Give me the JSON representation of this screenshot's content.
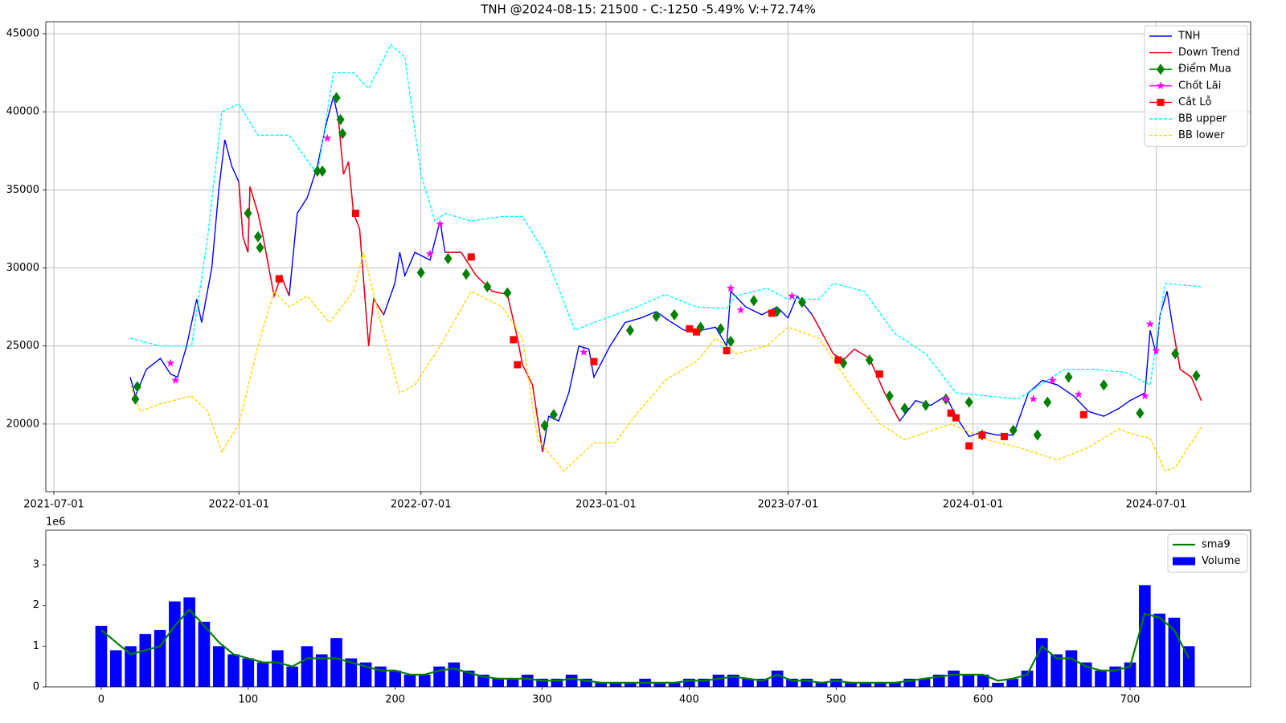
{
  "chart_data": [
    {
      "type": "line",
      "title": "TNH @2024-08-15: 21500 - C:-1250 -5.49% V:+72.74%",
      "xlim": [
        "2021-06-23",
        "2024-10-03"
      ],
      "ylim": [
        15670,
        45770
      ],
      "xticks": [
        "2021-07-01",
        "2022-01-01",
        "2022-07-01",
        "2023-01-01",
        "2023-07-01",
        "2024-01-01",
        "2024-07-01"
      ],
      "yticks": [
        20000,
        25000,
        30000,
        35000,
        40000,
        45000
      ],
      "grid": true,
      "legend": "upper right",
      "x": [
        "2021-09-15",
        "2021-09-20",
        "2021-10-01",
        "2021-10-15",
        "2021-10-25",
        "2021-11-01",
        "2021-11-10",
        "2021-11-20",
        "2021-11-25",
        "2021-12-05",
        "2021-12-12",
        "2021-12-18",
        "2021-12-25",
        "2022-01-01",
        "2022-01-05",
        "2022-01-10",
        "2022-01-12",
        "2022-01-20",
        "2022-01-25",
        "2022-02-05",
        "2022-02-12",
        "2022-02-20",
        "2022-02-28",
        "2022-03-10",
        "2022-03-20",
        "2022-03-28",
        "2022-04-05",
        "2022-04-10",
        "2022-04-15",
        "2022-04-20",
        "2022-04-25",
        "2022-05-01",
        "2022-05-10",
        "2022-05-15",
        "2022-05-25",
        "2022-06-05",
        "2022-06-10",
        "2022-06-15",
        "2022-06-25",
        "2022-07-10",
        "2022-07-20",
        "2022-07-25",
        "2022-08-10",
        "2022-08-25",
        "2022-09-10",
        "2022-09-25",
        "2022-10-05",
        "2022-10-10",
        "2022-10-20",
        "2022-10-30",
        "2022-11-05",
        "2022-11-15",
        "2022-11-25",
        "2022-12-05",
        "2022-12-15",
        "2022-12-20",
        "2023-01-05",
        "2023-01-20",
        "2023-02-05",
        "2023-02-20",
        "2023-03-05",
        "2023-03-20",
        "2023-04-05",
        "2023-04-20",
        "2023-05-01",
        "2023-05-05",
        "2023-05-20",
        "2023-06-05",
        "2023-06-20",
        "2023-07-01",
        "2023-07-10",
        "2023-07-25",
        "2023-08-15",
        "2023-08-25",
        "2023-09-05",
        "2023-09-20",
        "2023-10-05",
        "2023-10-20",
        "2023-11-05",
        "2023-11-20",
        "2023-12-05",
        "2023-12-15",
        "2023-12-28",
        "2024-01-10",
        "2024-01-25",
        "2024-02-10",
        "2024-02-25",
        "2024-03-10",
        "2024-03-25",
        "2024-04-10",
        "2024-04-25",
        "2024-05-10",
        "2024-05-25",
        "2024-06-05",
        "2024-06-20",
        "2024-06-25",
        "2024-07-01",
        "2024-07-05",
        "2024-07-12",
        "2024-07-18",
        "2024-07-25",
        "2024-08-05",
        "2024-08-15"
      ],
      "series": [
        {
          "name": "TNH",
          "color": "#0000ff",
          "style": "solid",
          "values": [
            23000,
            21800,
            23500,
            24200,
            23200,
            23000,
            25000,
            28000,
            26500,
            30000,
            35000,
            38200,
            36500,
            35500,
            32000,
            31000,
            35200,
            33500,
            32000,
            28200,
            29500,
            28200,
            33500,
            34500,
            36500,
            39000,
            41000,
            39500,
            36000,
            36800,
            33500,
            32500,
            25000,
            28000,
            27000,
            29000,
            31000,
            29500,
            31000,
            30500,
            33000,
            31000,
            31000,
            29500,
            28500,
            28300,
            25500,
            23800,
            22500,
            18200,
            20500,
            20200,
            22000,
            25000,
            24800,
            23000,
            25000,
            26500,
            26800,
            27200,
            26600,
            26000,
            26000,
            26200,
            25000,
            28500,
            27500,
            27000,
            27500,
            26800,
            28200,
            27000,
            24500,
            24100,
            24800,
            24200,
            22000,
            20200,
            21500,
            21200,
            21800,
            20500,
            19200,
            19500,
            19300,
            19300,
            22000,
            22800,
            22500,
            21800,
            20800,
            20500,
            21000,
            21500,
            22000,
            26000,
            24500,
            27000,
            28500,
            26000,
            23500,
            23000,
            21500
          ]
        },
        {
          "name": "Down Trend",
          "color": "#ff0000",
          "style": "solid",
          "values": [
            null,
            null,
            null,
            null,
            null,
            null,
            null,
            null,
            null,
            null,
            null,
            null,
            null,
            35500,
            32000,
            31000,
            35200,
            33500,
            32000,
            28200,
            29500,
            28200,
            null,
            null,
            null,
            null,
            null,
            39500,
            36000,
            36800,
            33500,
            32500,
            25000,
            28000,
            27000,
            null,
            null,
            null,
            null,
            null,
            null,
            31000,
            31000,
            29500,
            28500,
            28300,
            25500,
            23800,
            22500,
            18200,
            null,
            null,
            null,
            null,
            null,
            null,
            null,
            null,
            null,
            null,
            null,
            null,
            null,
            null,
            null,
            null,
            null,
            null,
            null,
            null,
            null,
            27000,
            24500,
            24100,
            24800,
            24200,
            22000,
            20200,
            null,
            null,
            null,
            null,
            null,
            null,
            null,
            null,
            null,
            null,
            null,
            null,
            null,
            null,
            null,
            null,
            null,
            null,
            null,
            null,
            null,
            26000,
            23500,
            23000,
            21500
          ]
        },
        {
          "name": "Điểm Mua",
          "color": "#008000",
          "style": "marker",
          "marker": "diamond",
          "x": [
            "2021-09-20",
            "2021-09-22",
            "2022-01-10",
            "2022-01-20",
            "2022-01-22",
            "2022-03-20",
            "2022-03-25",
            "2022-04-08",
            "2022-04-12",
            "2022-04-14",
            "2022-07-01",
            "2022-07-28",
            "2022-08-15",
            "2022-09-05",
            "2022-09-25",
            "2022-11-01",
            "2022-11-10",
            "2023-01-25",
            "2023-02-20",
            "2023-03-10",
            "2023-04-05",
            "2023-04-25",
            "2023-05-05",
            "2023-05-28",
            "2023-06-20",
            "2023-07-15",
            "2023-08-25",
            "2023-09-20",
            "2023-10-10",
            "2023-10-25",
            "2023-11-15",
            "2023-12-05",
            "2023-12-28",
            "2024-01-10",
            "2024-02-10",
            "2024-03-05",
            "2024-03-15",
            "2024-04-05",
            "2024-05-10",
            "2024-06-15",
            "2024-07-20",
            "2024-08-10"
          ],
          "values": [
            21600,
            22400,
            33500,
            32000,
            31300,
            36200,
            36200,
            40900,
            39500,
            38600,
            29700,
            30600,
            29600,
            28800,
            28400,
            19900,
            20600,
            26000,
            26900,
            27000,
            26200,
            26100,
            25300,
            27900,
            27200,
            27800,
            23900,
            24100,
            21800,
            21000,
            21200,
            21600,
            21400,
            19300,
            19600,
            19300,
            21400,
            23000,
            22500,
            20700,
            24500,
            23100
          ]
        },
        {
          "name": "Chốt Lãi",
          "color": "#ff00ff",
          "style": "marker",
          "marker": "star",
          "x": [
            "2021-10-25",
            "2021-10-30",
            "2022-03-30",
            "2022-07-10",
            "2022-07-20",
            "2022-12-10",
            "2023-05-05",
            "2023-05-15",
            "2023-07-05",
            "2023-12-05",
            "2024-03-01",
            "2024-03-20",
            "2024-04-15",
            "2024-06-20",
            "2024-06-25",
            "2024-07-01"
          ],
          "values": [
            23900,
            22800,
            38300,
            30900,
            32800,
            24600,
            28700,
            27300,
            28200,
            21600,
            21600,
            22800,
            21900,
            21800,
            26400,
            24700
          ]
        },
        {
          "name": "Cắt Lỗ",
          "color": "#ff0000",
          "style": "marker",
          "marker": "square",
          "x": [
            "2022-02-10",
            "2022-04-27",
            "2022-08-20",
            "2022-10-01",
            "2022-10-05",
            "2022-12-20",
            "2023-03-25",
            "2023-04-01",
            "2023-05-01",
            "2023-06-15",
            "2023-08-20",
            "2023-09-30",
            "2023-12-10",
            "2023-12-15",
            "2023-12-28",
            "2024-01-10",
            "2024-02-01",
            "2024-04-20"
          ],
          "values": [
            29300,
            33500,
            30700,
            25400,
            23800,
            24000,
            26100,
            25900,
            24700,
            27100,
            24100,
            23200,
            20700,
            20400,
            18600,
            19300,
            19200,
            20600
          ]
        },
        {
          "name": "BB upper",
          "color": "#00ffff",
          "style": "dashed",
          "x": [
            "2021-09-15",
            "2021-10-15",
            "2021-11-15",
            "2021-12-01",
            "2021-12-15",
            "2022-01-01",
            "2022-01-20",
            "2022-02-20",
            "2022-03-20",
            "2022-04-05",
            "2022-04-25",
            "2022-05-10",
            "2022-06-01",
            "2022-06-15",
            "2022-07-01",
            "2022-07-15",
            "2022-07-25",
            "2022-08-20",
            "2022-09-20",
            "2022-10-10",
            "2022-11-01",
            "2022-12-01",
            "2022-12-20",
            "2023-02-01",
            "2023-03-01",
            "2023-04-01",
            "2023-05-01",
            "2023-05-10",
            "2023-06-10",
            "2023-07-01",
            "2023-08-01",
            "2023-08-15",
            "2023-09-15",
            "2023-10-15",
            "2023-11-15",
            "2023-12-15",
            "2024-01-15",
            "2024-02-15",
            "2024-03-10",
            "2024-04-01",
            "2024-05-01",
            "2024-06-01",
            "2024-06-25",
            "2024-07-10",
            "2024-08-15"
          ],
          "values": [
            25500,
            25000,
            25000,
            32000,
            40000,
            40500,
            38500,
            38500,
            36000,
            42500,
            42500,
            41500,
            44300,
            43500,
            36000,
            33000,
            33500,
            33000,
            33300,
            33300,
            31000,
            26000,
            26500,
            27500,
            28300,
            27500,
            27400,
            28200,
            28700,
            28000,
            28000,
            29000,
            28500,
            25800,
            24500,
            22000,
            21800,
            21600,
            22600,
            23500,
            23500,
            23300,
            22500,
            29000,
            28800
          ]
        },
        {
          "name": "BB lower",
          "color": "#ffd700",
          "style": "dashed",
          "x": [
            "2021-09-15",
            "2021-09-25",
            "2021-10-15",
            "2021-11-15",
            "2021-12-01",
            "2021-12-15",
            "2022-01-01",
            "2022-01-20",
            "2022-02-05",
            "2022-02-20",
            "2022-03-10",
            "2022-04-01",
            "2022-04-25",
            "2022-05-05",
            "2022-05-20",
            "2022-06-10",
            "2022-06-25",
            "2022-07-20",
            "2022-08-20",
            "2022-09-20",
            "2022-10-10",
            "2022-10-25",
            "2022-11-20",
            "2022-12-20",
            "2023-01-10",
            "2023-02-01",
            "2023-03-01",
            "2023-04-01",
            "2023-04-20",
            "2023-05-10",
            "2023-06-10",
            "2023-07-01",
            "2023-08-01",
            "2023-09-01",
            "2023-10-01",
            "2023-10-25",
            "2023-12-10",
            "2024-01-15",
            "2024-02-15",
            "2024-03-25",
            "2024-04-25",
            "2024-05-25",
            "2024-06-10",
            "2024-06-25",
            "2024-07-10",
            "2024-07-20",
            "2024-08-15"
          ],
          "values": [
            22500,
            20800,
            21300,
            21800,
            20800,
            18200,
            20000,
            25000,
            28500,
            27500,
            28200,
            26500,
            28500,
            31000,
            27000,
            22000,
            22500,
            25000,
            28500,
            27500,
            25500,
            19000,
            17000,
            18800,
            18800,
            20700,
            22800,
            24000,
            25500,
            24500,
            25000,
            26200,
            25500,
            22500,
            20000,
            19000,
            20000,
            19000,
            18500,
            17700,
            18500,
            19700,
            19300,
            19100,
            17000,
            17200,
            19800
          ]
        }
      ]
    },
    {
      "type": "bar",
      "y_offset_label": "1e6",
      "xlim": [
        -37.7,
        782
      ],
      "ylim": [
        0,
        3.85
      ],
      "xticks": [
        0,
        100,
        200,
        300,
        400,
        500,
        600,
        700
      ],
      "yticks": [
        0,
        1,
        2,
        3
      ],
      "grid": false,
      "legend": "upper right",
      "x": [
        0,
        10,
        20,
        30,
        40,
        50,
        60,
        70,
        80,
        90,
        100,
        110,
        120,
        130,
        140,
        150,
        160,
        170,
        180,
        190,
        200,
        210,
        220,
        230,
        240,
        250,
        260,
        270,
        280,
        290,
        300,
        310,
        320,
        330,
        340,
        350,
        360,
        370,
        380,
        390,
        400,
        410,
        420,
        430,
        440,
        450,
        460,
        470,
        480,
        490,
        500,
        510,
        520,
        530,
        540,
        550,
        560,
        570,
        580,
        590,
        600,
        610,
        620,
        630,
        640,
        650,
        660,
        670,
        680,
        690,
        700,
        710,
        720,
        730,
        740
      ],
      "series": [
        {
          "name": "sma9",
          "color": "#008000",
          "type": "line",
          "values": [
            1.4,
            1.1,
            0.8,
            0.9,
            1.0,
            1.5,
            1.9,
            1.5,
            1.1,
            0.8,
            0.7,
            0.6,
            0.6,
            0.5,
            0.7,
            0.7,
            0.7,
            0.6,
            0.5,
            0.4,
            0.4,
            0.3,
            0.3,
            0.4,
            0.45,
            0.35,
            0.25,
            0.2,
            0.2,
            0.2,
            0.15,
            0.15,
            0.2,
            0.15,
            0.1,
            0.1,
            0.1,
            0.1,
            0.1,
            0.1,
            0.15,
            0.15,
            0.2,
            0.25,
            0.2,
            0.15,
            0.3,
            0.15,
            0.15,
            0.1,
            0.15,
            0.1,
            0.1,
            0.1,
            0.1,
            0.15,
            0.2,
            0.25,
            0.3,
            0.3,
            0.3,
            0.15,
            0.2,
            0.3,
            1.0,
            0.7,
            0.7,
            0.5,
            0.4,
            0.4,
            0.5,
            1.8,
            1.7,
            1.4,
            0.7
          ]
        },
        {
          "name": "Volume",
          "color": "#0000ff",
          "type": "bar",
          "values": [
            1.5,
            0.9,
            1.0,
            1.3,
            1.4,
            2.1,
            2.2,
            1.6,
            1.0,
            0.8,
            0.7,
            0.6,
            0.9,
            0.5,
            1.0,
            0.8,
            1.2,
            0.7,
            0.6,
            0.5,
            0.4,
            0.3,
            0.3,
            0.5,
            0.6,
            0.4,
            0.3,
            0.2,
            0.2,
            0.3,
            0.2,
            0.2,
            0.3,
            0.2,
            0.1,
            0.1,
            0.1,
            0.2,
            0.1,
            0.1,
            0.2,
            0.2,
            0.3,
            0.3,
            0.2,
            0.2,
            0.4,
            0.2,
            0.2,
            0.1,
            0.2,
            0.1,
            0.1,
            0.1,
            0.1,
            0.2,
            0.2,
            0.3,
            0.4,
            0.3,
            0.3,
            0.1,
            0.2,
            0.4,
            1.2,
            0.8,
            0.9,
            0.6,
            0.4,
            0.5,
            0.6,
            2.5,
            1.8,
            1.7,
            1.0
          ]
        }
      ]
    }
  ]
}
